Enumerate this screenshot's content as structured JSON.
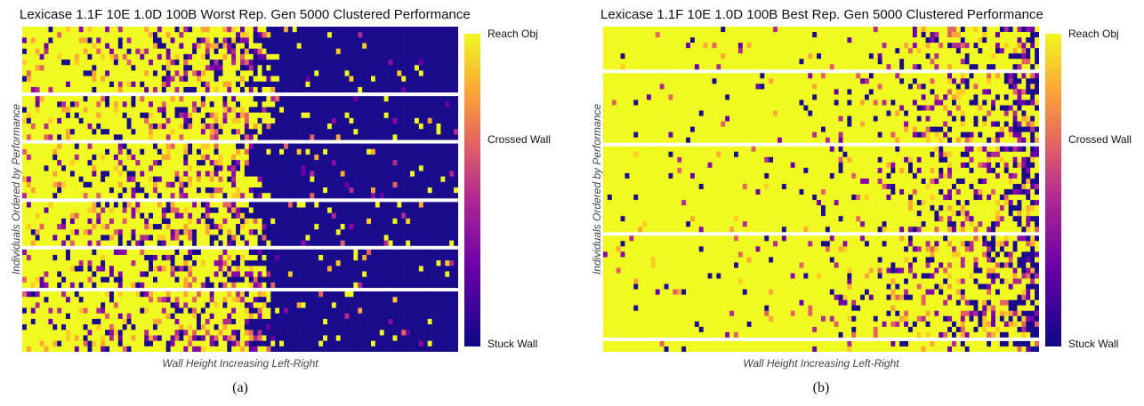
{
  "chart_data": [
    {
      "type": "heatmap",
      "title": "Lexicase 1.1F 10E 1.0D 100B Worst Rep. Gen 5000 Clustered Performance",
      "xlabel": "Wall Height Increasing Left-Right",
      "ylabel": "Individuals Ordered by Performance",
      "subfigure_label": "(a)",
      "colorbar": {
        "colormap": "plasma",
        "ticks": [
          "Stuck Wall",
          "Crossed Wall",
          "Reach Obj"
        ],
        "values": [
          0,
          1,
          2
        ]
      },
      "columns": 100,
      "clusters": [
        {
          "rows": 12,
          "stuck_start": 0.55,
          "noise_left": 0.4,
          "noise_right": 0.05
        },
        {
          "rows": 8,
          "stuck_start": 0.55,
          "noise_left": 0.45,
          "noise_right": 0.06
        },
        {
          "rows": 10,
          "stuck_start": 0.55,
          "noise_left": 0.42,
          "noise_right": 0.06
        },
        {
          "rows": 8,
          "stuck_start": 0.55,
          "noise_left": 0.45,
          "noise_right": 0.05
        },
        {
          "rows": 7,
          "stuck_start": 0.55,
          "noise_left": 0.4,
          "noise_right": 0.04
        },
        {
          "rows": 11,
          "stuck_start": 0.55,
          "noise_left": 0.45,
          "noise_right": 0.06
        }
      ]
    },
    {
      "type": "heatmap",
      "title": "Lexicase 1.1F 10E 1.0D 100B Best Rep. Gen 5000 Clustered Performance",
      "xlabel": "Wall Height Increasing Left-Right",
      "ylabel": "Individuals Ordered by Performance",
      "subfigure_label": "(b)",
      "colorbar": {
        "colormap": "plasma",
        "ticks": [
          "Stuck Wall",
          "Crossed Wall",
          "Reach Obj"
        ],
        "values": [
          0,
          1,
          2
        ]
      },
      "columns": 100,
      "clusters": [
        {
          "rows": 8,
          "stuck_start": 0.97,
          "noise_left": 0.03,
          "noise_right": 0.45
        },
        {
          "rows": 13,
          "stuck_start": 0.97,
          "noise_left": 0.04,
          "noise_right": 0.5
        },
        {
          "rows": 16,
          "stuck_start": 0.97,
          "noise_left": 0.04,
          "noise_right": 0.52
        },
        {
          "rows": 19,
          "stuck_start": 0.97,
          "noise_left": 0.04,
          "noise_right": 0.55
        },
        {
          "rows": 2,
          "stuck_start": 0.97,
          "noise_left": 0.02,
          "noise_right": 0.3
        }
      ]
    }
  ]
}
